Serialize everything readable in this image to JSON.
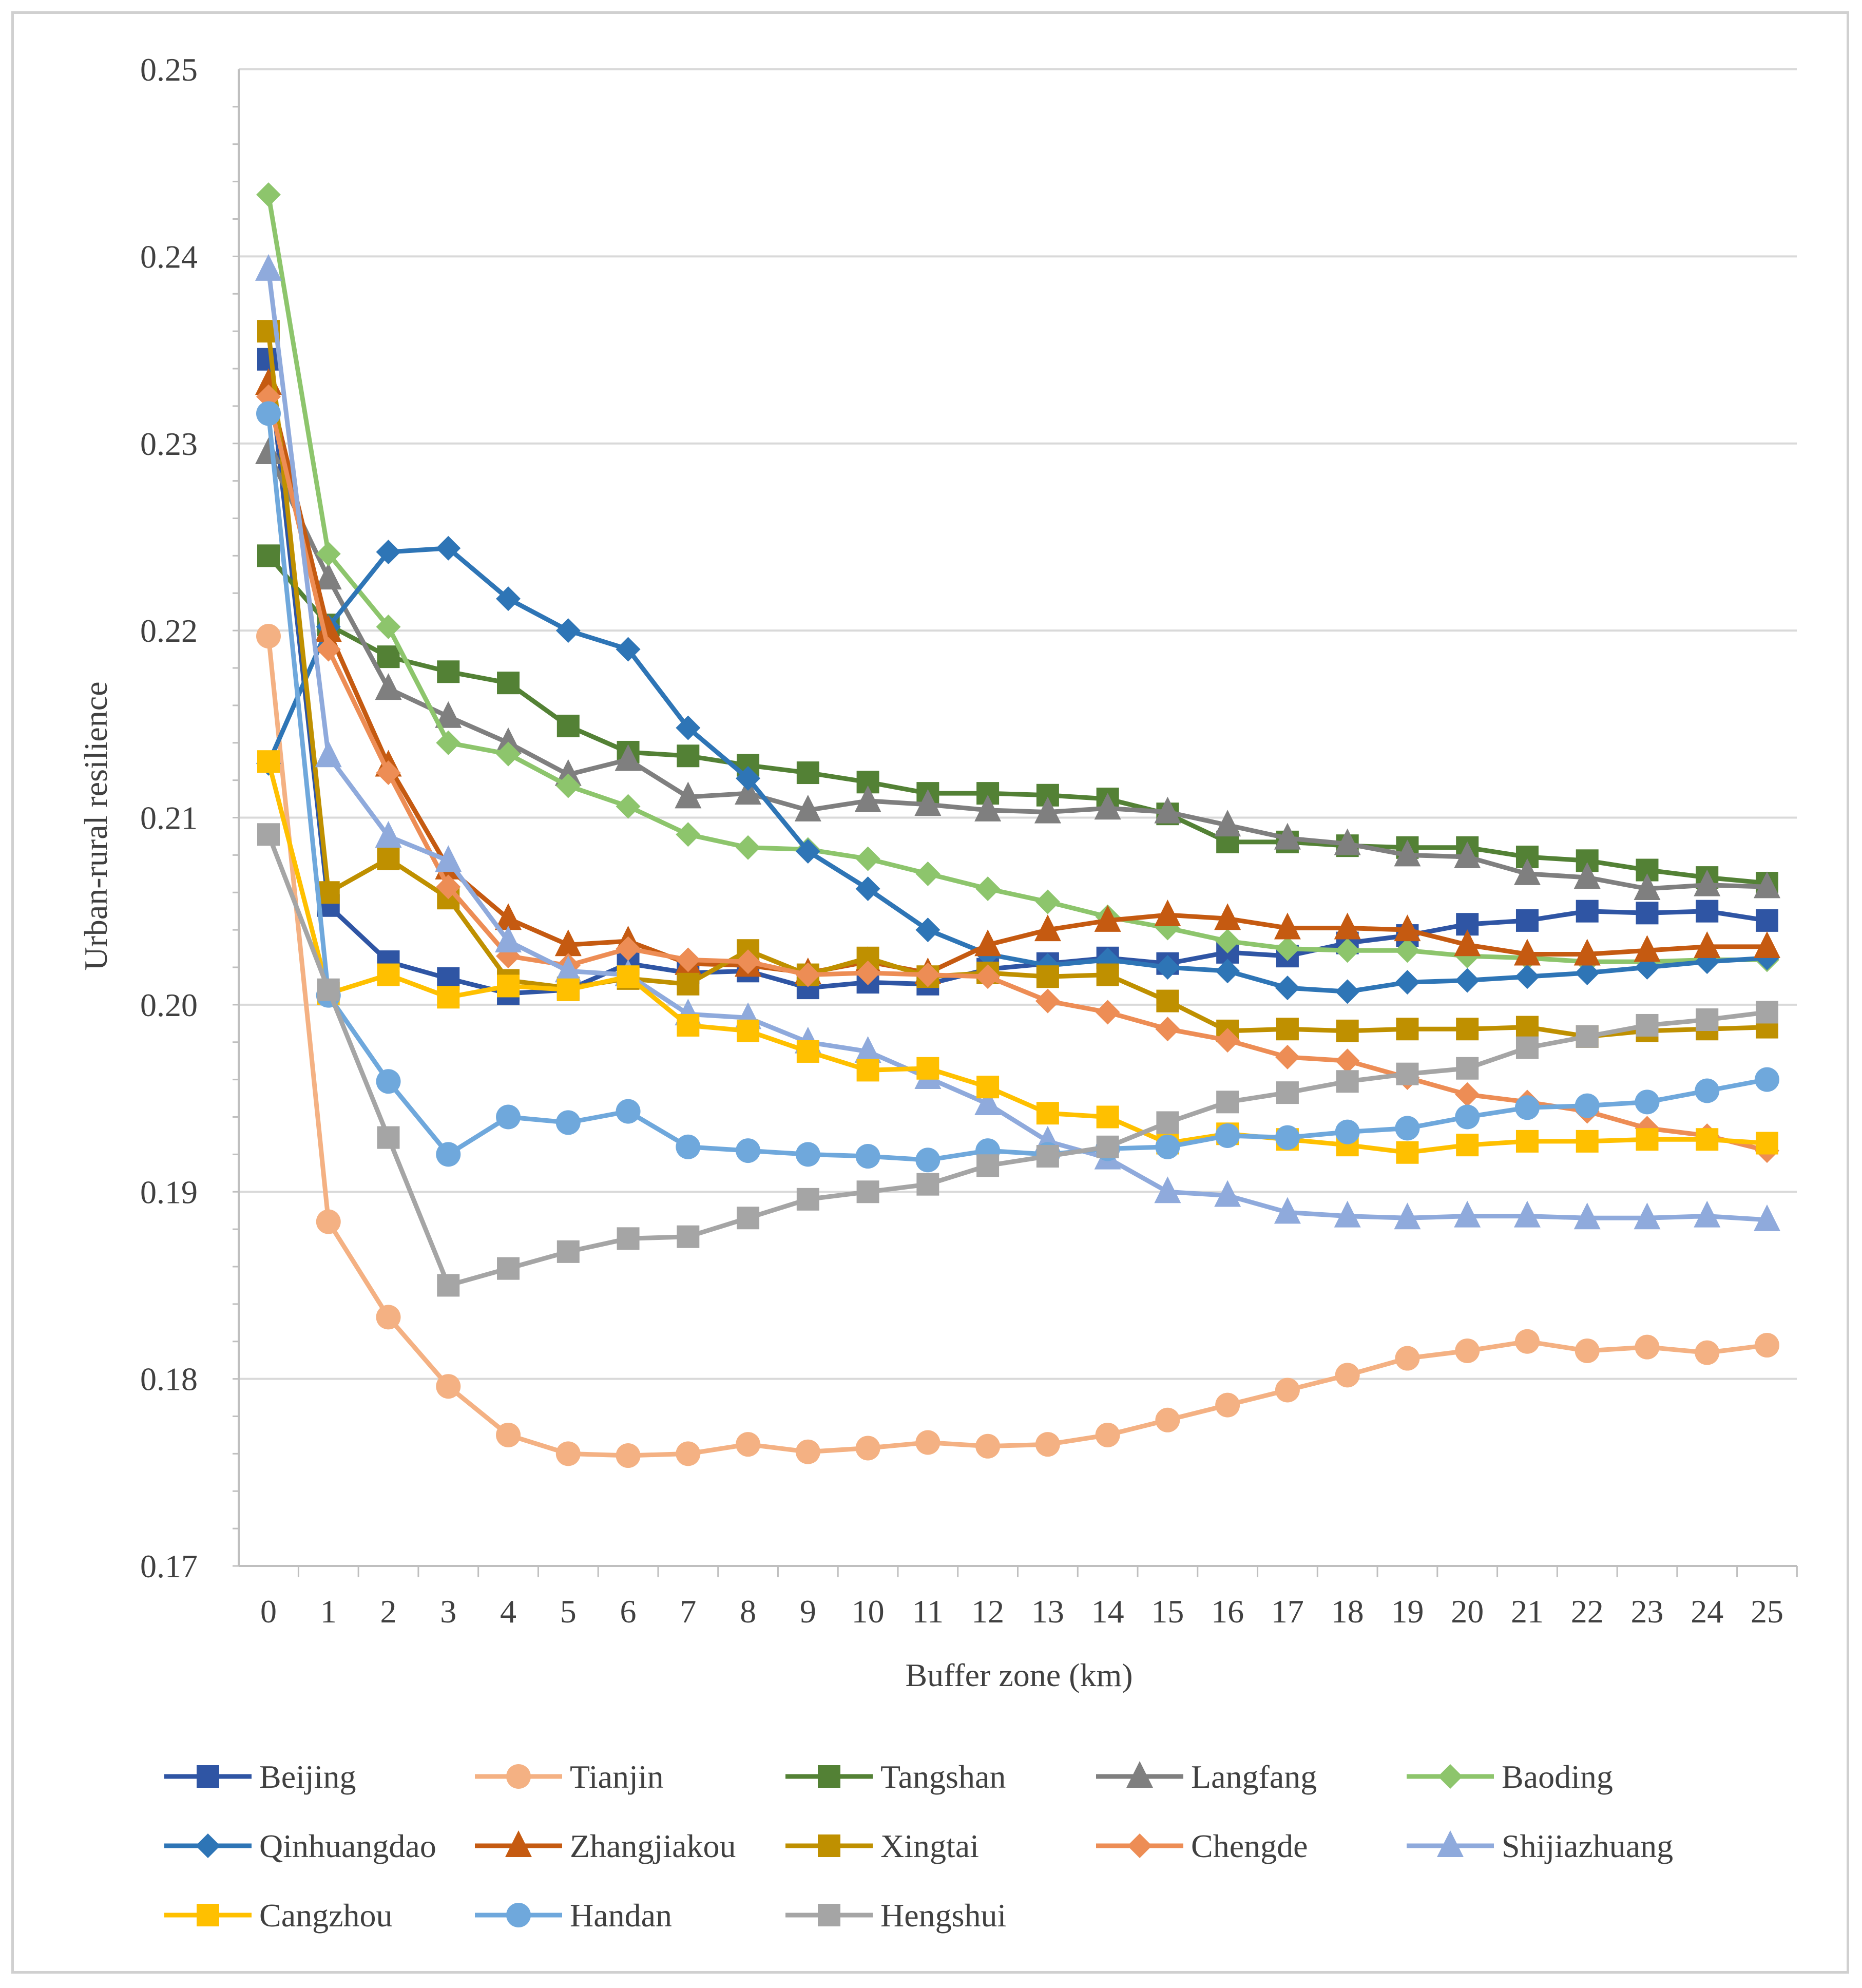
{
  "chart_data": {
    "type": "line",
    "title": "",
    "xlabel": "Buffer zone (km)",
    "ylabel": "Urban-rural resilience",
    "x": [
      0,
      1,
      2,
      3,
      4,
      5,
      6,
      7,
      8,
      9,
      10,
      11,
      12,
      13,
      14,
      15,
      16,
      17,
      18,
      19,
      20,
      21,
      22,
      23,
      24,
      25
    ],
    "ylim": [
      0.17,
      0.25
    ],
    "yticks": [
      "0.17",
      "0.18",
      "0.19",
      "0.20",
      "0.21",
      "0.22",
      "0.23",
      "0.24",
      "0.25"
    ],
    "grid": true,
    "legend_position": "bottom",
    "series": [
      {
        "name": "Beijing",
        "color": "#2f55a4",
        "marker": "square",
        "values": [
          0.2345,
          0.2053,
          0.2023,
          0.2014,
          0.2006,
          0.2008,
          0.2022,
          0.2017,
          0.2018,
          0.2009,
          0.2012,
          0.2011,
          0.2019,
          0.2022,
          0.2025,
          0.2022,
          0.2028,
          0.2026,
          0.2033,
          0.2037,
          0.2043,
          0.2045,
          0.205,
          0.2049,
          0.205,
          0.2045
        ]
      },
      {
        "name": "Tianjin",
        "color": "#f4b183",
        "marker": "circle",
        "values": [
          0.2197,
          0.1884,
          0.1833,
          0.1796,
          0.177,
          0.176,
          0.1759,
          0.176,
          0.1765,
          0.1761,
          0.1763,
          0.1766,
          0.1764,
          0.1765,
          0.177,
          0.1778,
          0.1786,
          0.1794,
          0.1802,
          0.1811,
          0.1815,
          0.182,
          0.1815,
          0.1817,
          0.1814,
          0.1818
        ]
      },
      {
        "name": "Tangshan",
        "color": "#538135",
        "marker": "square",
        "values": [
          0.224,
          0.2203,
          0.2186,
          0.2178,
          0.2172,
          0.2149,
          0.2135,
          0.2133,
          0.2128,
          0.2124,
          0.2119,
          0.2113,
          0.2113,
          0.2112,
          0.211,
          0.2102,
          0.2087,
          0.2087,
          0.2085,
          0.2084,
          0.2084,
          0.2079,
          0.2077,
          0.2072,
          0.2068,
          0.2065
        ]
      },
      {
        "name": "Langfang",
        "color": "#7f7f7f",
        "marker": "triangle",
        "values": [
          0.2295,
          0.2228,
          0.2169,
          0.2154,
          0.214,
          0.2123,
          0.2131,
          0.2111,
          0.2113,
          0.2104,
          0.2109,
          0.2107,
          0.2104,
          0.2103,
          0.2105,
          0.2103,
          0.2096,
          0.2089,
          0.2086,
          0.208,
          0.2079,
          0.207,
          0.2068,
          0.2062,
          0.2064,
          0.2063
        ]
      },
      {
        "name": "Baoding",
        "color": "#8dc56c",
        "marker": "diamond",
        "values": [
          0.2433,
          0.2241,
          0.2202,
          0.214,
          0.2134,
          0.2117,
          0.2106,
          0.2091,
          0.2084,
          0.2083,
          0.2078,
          0.207,
          0.2062,
          0.2055,
          0.2047,
          0.2041,
          0.2034,
          0.203,
          0.2029,
          0.2029,
          0.2026,
          0.2025,
          0.2023,
          0.2023,
          0.2024,
          0.2024
        ]
      },
      {
        "name": "Qinhuangdao",
        "color": "#2e75b6",
        "marker": "diamond",
        "values": [
          0.2129,
          0.2202,
          0.2242,
          0.2244,
          0.2217,
          0.22,
          0.219,
          0.2148,
          0.2121,
          0.2082,
          0.2062,
          0.204,
          0.2027,
          0.2021,
          0.2024,
          0.202,
          0.2018,
          0.2009,
          0.2007,
          0.2012,
          0.2013,
          0.2015,
          0.2017,
          0.202,
          0.2023,
          0.2025
        ]
      },
      {
        "name": "Zhangjiakou",
        "color": "#c55a11",
        "marker": "triangle",
        "values": [
          0.2332,
          0.22,
          0.2128,
          0.2073,
          0.2046,
          0.2032,
          0.2034,
          0.2022,
          0.2021,
          0.2017,
          0.2023,
          0.2017,
          0.2032,
          0.204,
          0.2045,
          0.2048,
          0.2046,
          0.2041,
          0.2041,
          0.204,
          0.2032,
          0.2027,
          0.2027,
          0.2029,
          0.2031,
          0.2031
        ]
      },
      {
        "name": "Xingtai",
        "color": "#bf9000",
        "marker": "square",
        "values": [
          0.236,
          0.206,
          0.2078,
          0.2057,
          0.2013,
          0.2009,
          0.2014,
          0.2011,
          0.2029,
          0.2016,
          0.2025,
          0.2015,
          0.2017,
          0.2015,
          0.2016,
          0.2002,
          0.1986,
          0.1987,
          0.1986,
          0.1987,
          0.1987,
          0.1988,
          0.1983,
          0.1986,
          0.1987,
          0.1988
        ]
      },
      {
        "name": "Chengde",
        "color": "#ed8d55",
        "marker": "diamond",
        "values": [
          0.2325,
          0.219,
          0.2124,
          0.2063,
          0.2026,
          0.2021,
          0.203,
          0.2024,
          0.2023,
          0.2016,
          0.2017,
          0.2016,
          0.2015,
          0.2002,
          0.1996,
          0.1987,
          0.1981,
          0.1972,
          0.197,
          0.1961,
          0.1952,
          0.1948,
          0.1943,
          0.1934,
          0.193,
          0.1922
        ]
      },
      {
        "name": "Shijiazhuang",
        "color": "#8faadc",
        "marker": "triangle",
        "values": [
          0.2393,
          0.2133,
          0.209,
          0.2077,
          0.2034,
          0.2018,
          0.2016,
          0.1995,
          0.1993,
          0.198,
          0.1975,
          0.1961,
          0.1947,
          0.1927,
          0.1918,
          0.19,
          0.1898,
          0.1889,
          0.1887,
          0.1886,
          0.1887,
          0.1887,
          0.1886,
          0.1886,
          0.1887,
          0.1885
        ]
      },
      {
        "name": "Cangzhou",
        "color": "#ffc000",
        "marker": "square",
        "values": [
          0.213,
          0.2006,
          0.2016,
          0.2004,
          0.201,
          0.2008,
          0.2015,
          0.1989,
          0.1986,
          0.1975,
          0.1965,
          0.1966,
          0.1956,
          0.1942,
          0.194,
          0.1926,
          0.1931,
          0.1928,
          0.1925,
          0.1921,
          0.1925,
          0.1927,
          0.1927,
          0.1928,
          0.1928,
          0.1926
        ]
      },
      {
        "name": "Handan",
        "color": "#6fa8dc",
        "marker": "circle",
        "values": [
          0.2316,
          0.2005,
          0.1959,
          0.192,
          0.194,
          0.1937,
          0.1943,
          0.1924,
          0.1922,
          0.192,
          0.1919,
          0.1917,
          0.1922,
          0.192,
          0.1923,
          0.1924,
          0.193,
          0.1929,
          0.1932,
          0.1934,
          0.194,
          0.1945,
          0.1946,
          0.1948,
          0.1954,
          0.196
        ]
      },
      {
        "name": "Hengshui",
        "color": "#a5a5a5",
        "marker": "square",
        "values": [
          0.2091,
          0.2008,
          0.1929,
          0.185,
          0.1859,
          0.1868,
          0.1875,
          0.1876,
          0.1886,
          0.1896,
          0.19,
          0.1904,
          0.1914,
          0.1919,
          0.1924,
          0.1937,
          0.1948,
          0.1953,
          0.1959,
          0.1963,
          0.1966,
          0.1977,
          0.1983,
          0.1989,
          0.1992,
          0.1996
        ]
      }
    ]
  }
}
